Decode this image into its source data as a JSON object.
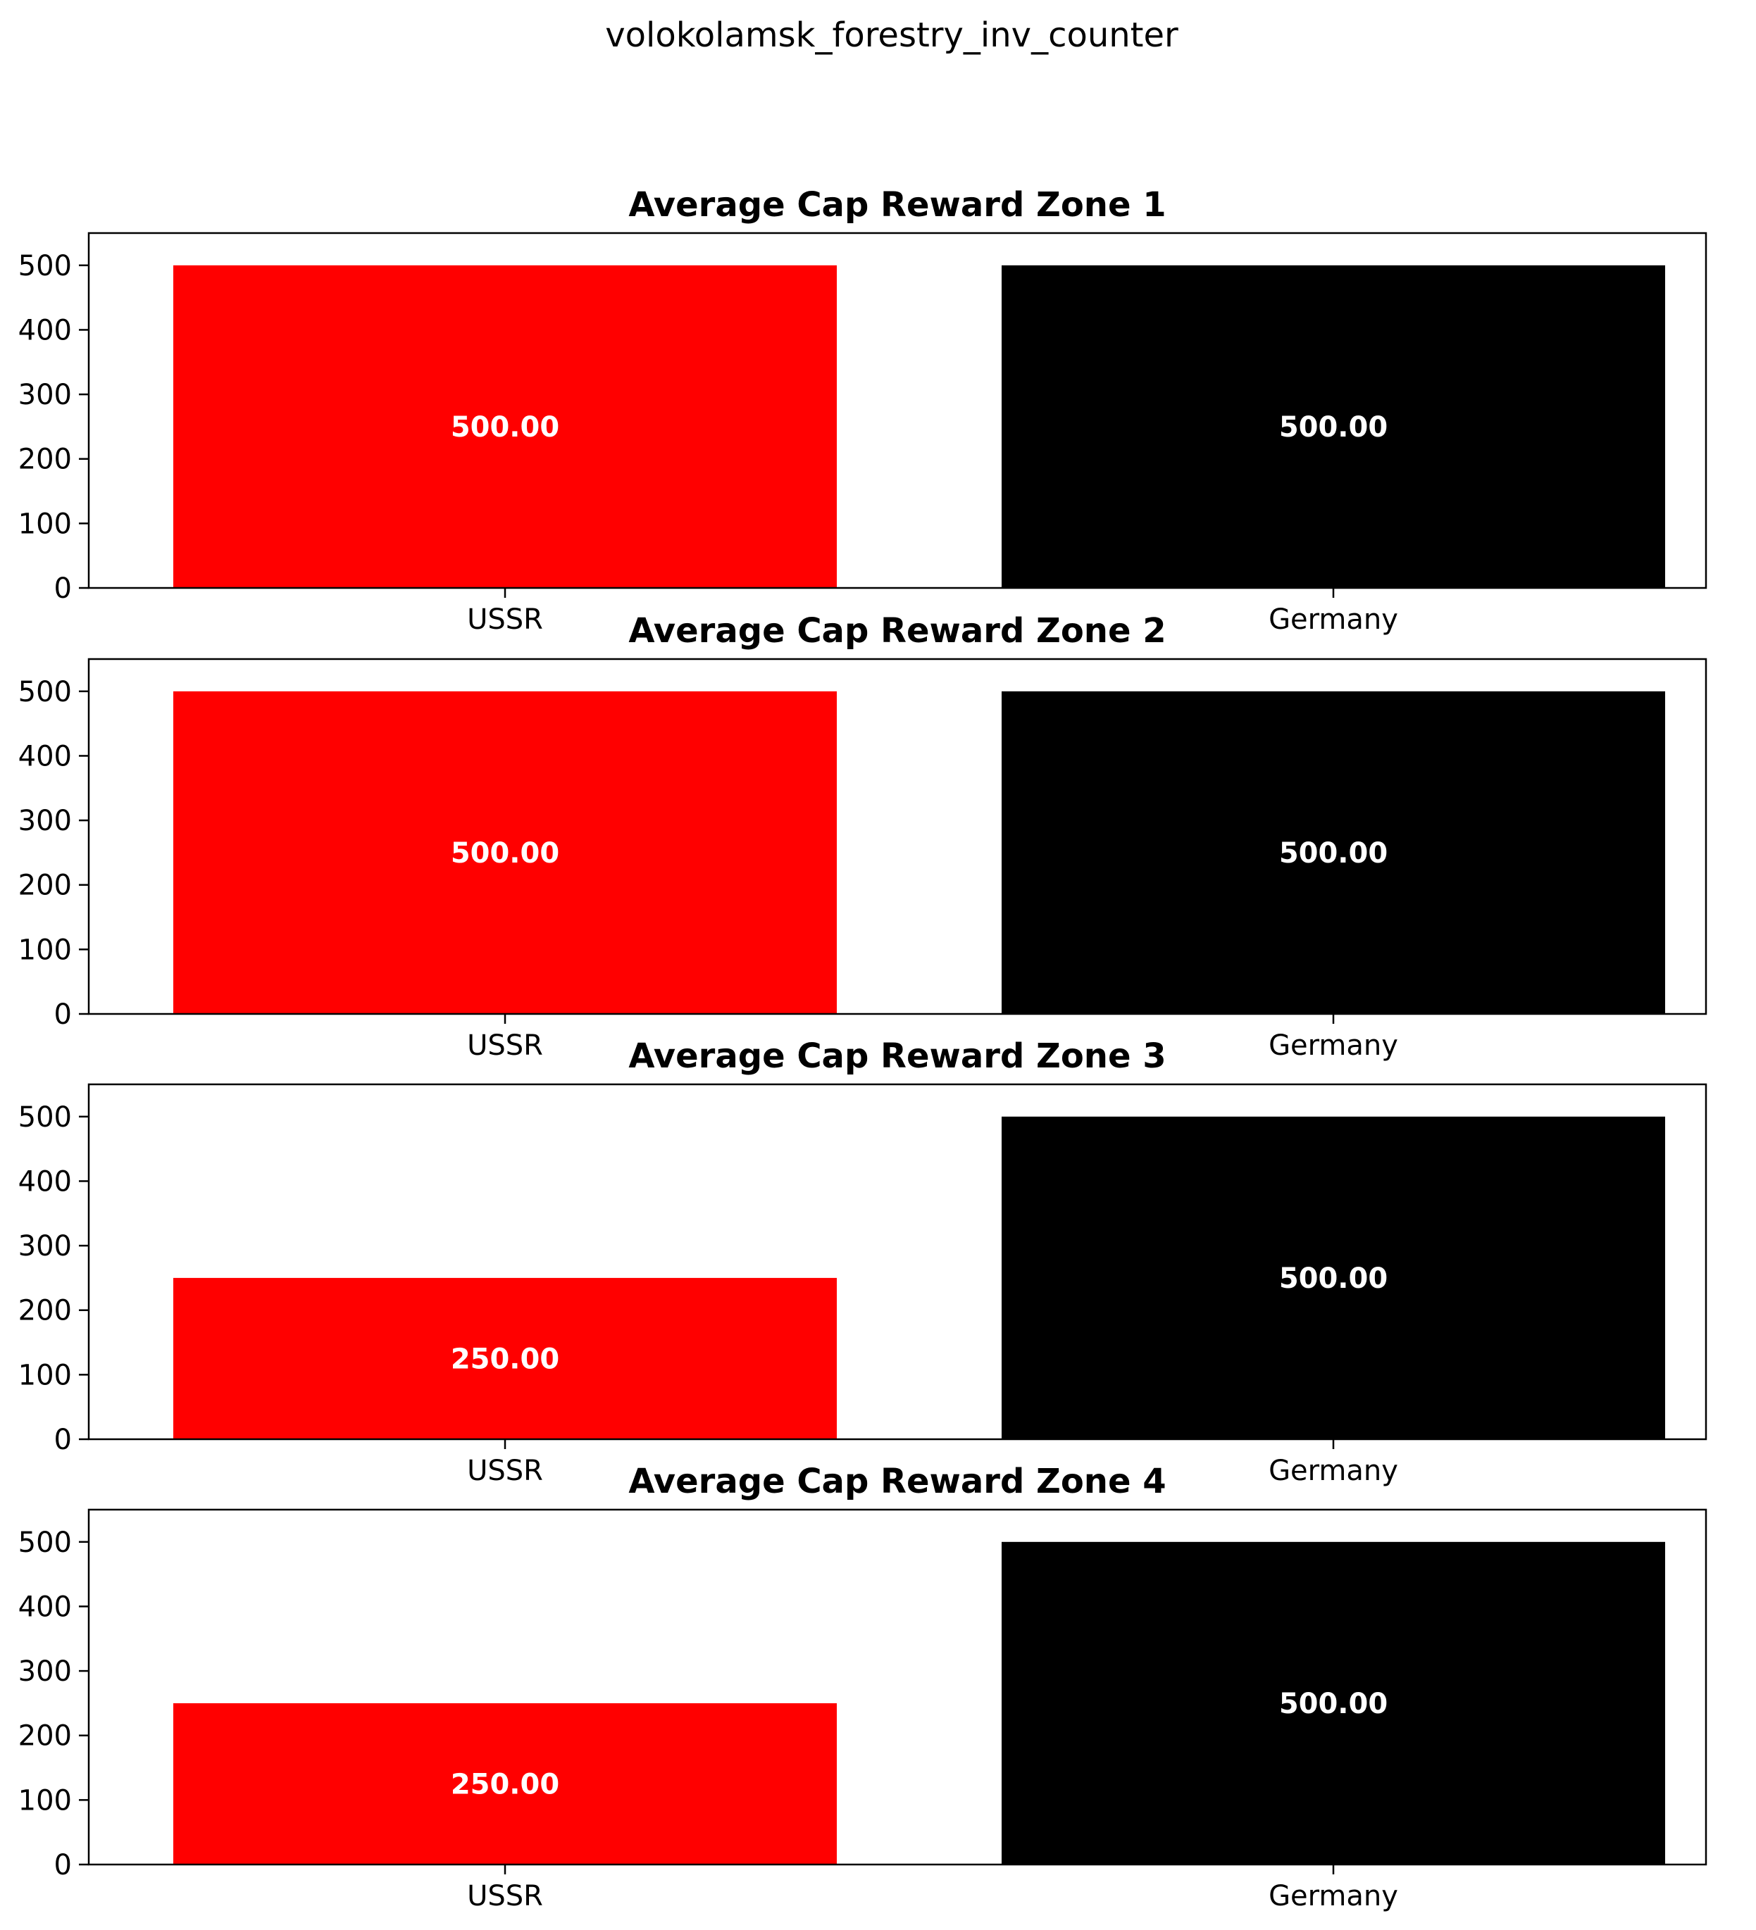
{
  "figure": {
    "suptitle": "volokolamsk_forestry_inv_counter"
  },
  "chart_data": [
    {
      "type": "bar",
      "title": "Average Cap Reward Zone 1",
      "categories": [
        "USSR",
        "Germany"
      ],
      "values": [
        500,
        500
      ],
      "value_labels": [
        "500.00",
        "500.00"
      ],
      "colors": [
        "#ff0000",
        "#000000"
      ],
      "ylim": [
        0,
        550
      ],
      "yticks": [
        0,
        100,
        200,
        300,
        400,
        500
      ],
      "xlabel": "",
      "ylabel": "",
      "grid": false
    },
    {
      "type": "bar",
      "title": "Average Cap Reward Zone 2",
      "categories": [
        "USSR",
        "Germany"
      ],
      "values": [
        500,
        500
      ],
      "value_labels": [
        "500.00",
        "500.00"
      ],
      "colors": [
        "#ff0000",
        "#000000"
      ],
      "ylim": [
        0,
        550
      ],
      "yticks": [
        0,
        100,
        200,
        300,
        400,
        500
      ],
      "xlabel": "",
      "ylabel": "",
      "grid": false
    },
    {
      "type": "bar",
      "title": "Average Cap Reward Zone 3",
      "categories": [
        "USSR",
        "Germany"
      ],
      "values": [
        250,
        500
      ],
      "value_labels": [
        "250.00",
        "500.00"
      ],
      "colors": [
        "#ff0000",
        "#000000"
      ],
      "ylim": [
        0,
        550
      ],
      "yticks": [
        0,
        100,
        200,
        300,
        400,
        500
      ],
      "xlabel": "",
      "ylabel": "",
      "grid": false
    },
    {
      "type": "bar",
      "title": "Average Cap Reward Zone 4",
      "categories": [
        "USSR",
        "Germany"
      ],
      "values": [
        250,
        500
      ],
      "value_labels": [
        "250.00",
        "500.00"
      ],
      "colors": [
        "#ff0000",
        "#000000"
      ],
      "ylim": [
        0,
        550
      ],
      "yticks": [
        0,
        100,
        200,
        300,
        400,
        500
      ],
      "xlabel": "",
      "ylabel": "",
      "grid": false
    }
  ]
}
